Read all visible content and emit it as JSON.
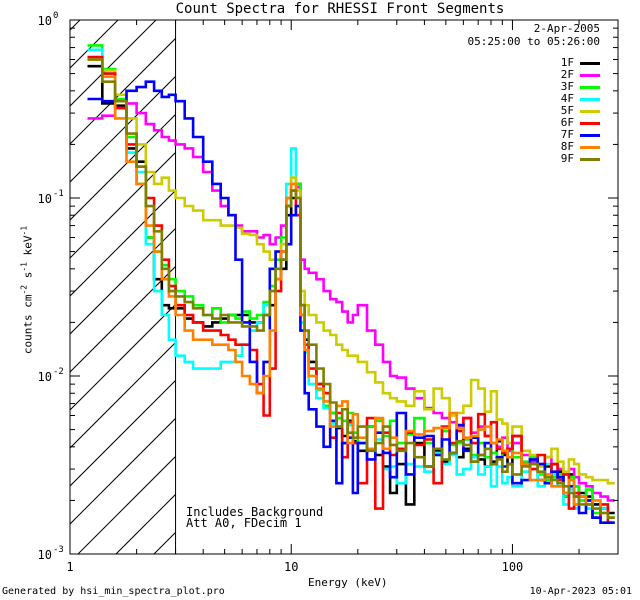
{
  "chart_data": {
    "type": "line",
    "title": "Count Spectra for RHESSI Front Segments",
    "xlabel": "Energy (keV)",
    "ylabel": "counts cm-2 s-1 keV-1",
    "xscale": "log",
    "yscale": "log",
    "xlim": [
      1,
      300
    ],
    "ylim": [
      0.001,
      1
    ],
    "x_ticks": [
      {
        "value": 1,
        "label": "1"
      },
      {
        "value": 10,
        "label": "10"
      },
      {
        "value": 100,
        "label": "100"
      }
    ],
    "y_ticks": [
      {
        "value": 1,
        "base": "10",
        "exp": "0"
      },
      {
        "value": 0.1,
        "base": "10",
        "exp": "-1"
      },
      {
        "value": 0.01,
        "base": "10",
        "exp": "-2"
      },
      {
        "value": 0.001,
        "base": "10",
        "exp": "-3"
      }
    ],
    "hatched_region_kev": [
      1,
      3
    ],
    "energy_edges": [
      1.2,
      1.4,
      1.6,
      1.8,
      2,
      2.2,
      2.4,
      2.6,
      2.8,
      3,
      3.3,
      3.6,
      4,
      4.4,
      4.8,
      5.2,
      5.6,
      6,
      6.5,
      7,
      7.5,
      8,
      8.5,
      9,
      9.5,
      10,
      10.5,
      11,
      11.5,
      12,
      13,
      14,
      15,
      16,
      17,
      18,
      19,
      20,
      22,
      24,
      26,
      28,
      30,
      33,
      36,
      40,
      44,
      48,
      52,
      56,
      60,
      65,
      70,
      75,
      80,
      85,
      90,
      95,
      100,
      110,
      120,
      130,
      140,
      150,
      160,
      170,
      180,
      190,
      200,
      215,
      230,
      250,
      270,
      290
    ],
    "series": [
      {
        "name": "1F",
        "color": "#000000",
        "values": [
          0.55,
          0.34,
          0.33,
          0.19,
          0.16,
          0.06,
          0.035,
          0.025,
          0.024,
          0.024,
          0.021,
          0.02,
          0.019,
          0.02,
          0.021,
          0.022,
          0.022,
          0.022,
          0.02,
          0.02,
          0.022,
          0.025,
          0.035,
          0.04,
          0.08,
          0.1,
          0.12,
          0.025,
          0.016,
          0.012,
          0.009,
          0.008,
          0.0062,
          0.0051,
          0.0046,
          0.0056,
          0.0043,
          0.0038,
          0.0052,
          0.0036,
          0.0031,
          0.0022,
          0.0032,
          0.0019,
          0.0042,
          0.0031,
          0.0038,
          0.0033,
          0.0037,
          0.0035,
          0.0039,
          0.0033,
          0.0034,
          0.0031,
          0.0033,
          0.0043,
          0.0036,
          0.0032,
          0.0046,
          0.0032,
          0.0033,
          0.0026,
          0.0031,
          0.0027,
          0.0029,
          0.0021,
          0.0028,
          0.0024,
          0.0022,
          0.0021,
          0.0019,
          0.0018,
          0.0017
        ]
      },
      {
        "name": "2F",
        "color": "#ff00ff",
        "values": [
          0.28,
          0.29,
          0.32,
          0.34,
          0.3,
          0.26,
          0.24,
          0.22,
          0.21,
          0.2,
          0.19,
          0.17,
          0.14,
          0.11,
          0.09,
          0.08,
          0.07,
          0.065,
          0.065,
          0.06,
          0.062,
          0.055,
          0.06,
          0.07,
          0.1,
          0.12,
          0.115,
          0.045,
          0.04,
          0.038,
          0.035,
          0.03,
          0.027,
          0.026,
          0.023,
          0.02,
          0.022,
          0.025,
          0.018,
          0.015,
          0.012,
          0.01,
          0.0098,
          0.0085,
          0.0075,
          0.0066,
          0.0062,
          0.0058,
          0.0055,
          0.0052,
          0.0058,
          0.0048,
          0.0052,
          0.0046,
          0.0042,
          0.004,
          0.0045,
          0.0038,
          0.0042,
          0.0036,
          0.0033,
          0.0032,
          0.0035,
          0.0032,
          0.003,
          0.0028,
          0.003,
          0.0027,
          0.0025,
          0.0024,
          0.0022,
          0.0021,
          0.002
        ]
      },
      {
        "name": "3F",
        "color": "#00ff00",
        "values": [
          0.72,
          0.53,
          0.36,
          0.22,
          0.12,
          0.06,
          0.05,
          0.042,
          0.035,
          0.03,
          0.028,
          0.025,
          0.022,
          0.024,
          0.02,
          0.022,
          0.021,
          0.023,
          0.021,
          0.022,
          0.026,
          0.032,
          0.045,
          0.06,
          0.1,
          0.13,
          0.12,
          0.025,
          0.015,
          0.01,
          0.0084,
          0.0068,
          0.0062,
          0.0058,
          0.0056,
          0.0062,
          0.0048,
          0.0042,
          0.0052,
          0.0056,
          0.0046,
          0.0056,
          0.0042,
          0.0047,
          0.0058,
          0.0042,
          0.0036,
          0.0049,
          0.0041,
          0.0042,
          0.0044,
          0.0036,
          0.0042,
          0.0035,
          0.0037,
          0.0035,
          0.0038,
          0.0039,
          0.0035,
          0.0033,
          0.0035,
          0.0028,
          0.0026,
          0.0027,
          0.0028,
          0.0021,
          0.0027,
          0.0024,
          0.002,
          0.0023,
          0.0017,
          0.0018,
          0.0016
        ]
      },
      {
        "name": "4F",
        "color": "#00ffff",
        "values": [
          0.68,
          0.5,
          0.35,
          0.18,
          0.14,
          0.055,
          0.03,
          0.022,
          0.016,
          0.013,
          0.012,
          0.011,
          0.011,
          0.011,
          0.012,
          0.012,
          0.013,
          0.015,
          0.018,
          0.02,
          0.025,
          0.03,
          0.04,
          0.05,
          0.12,
          0.19,
          0.1,
          0.02,
          0.0135,
          0.009,
          0.0075,
          0.0066,
          0.0054,
          0.0052,
          0.0042,
          0.0053,
          0.0042,
          0.0042,
          0.0038,
          0.0044,
          0.003,
          0.0031,
          0.0025,
          0.0032,
          0.0031,
          0.0029,
          0.0037,
          0.0032,
          0.0036,
          0.0028,
          0.003,
          0.0035,
          0.0028,
          0.0031,
          0.0024,
          0.0031,
          0.0025,
          0.0027,
          0.0024,
          0.0029,
          0.0032,
          0.0024,
          0.0032,
          0.0028,
          0.0024,
          0.0019,
          0.0023,
          0.0018,
          0.0021,
          0.0018,
          0.0016,
          0.0018,
          0.0015
        ]
      },
      {
        "name": "5F",
        "color": "#cccc00",
        "values": [
          0.6,
          0.52,
          0.38,
          0.28,
          0.2,
          0.14,
          0.12,
          0.13,
          0.11,
          0.1,
          0.09,
          0.085,
          0.075,
          0.075,
          0.07,
          0.07,
          0.068,
          0.063,
          0.062,
          0.055,
          0.05,
          0.045,
          0.05,
          0.055,
          0.1,
          0.13,
          0.11,
          0.03,
          0.025,
          0.022,
          0.02,
          0.018,
          0.017,
          0.015,
          0.014,
          0.013,
          0.013,
          0.012,
          0.0105,
          0.0092,
          0.008,
          0.0075,
          0.0072,
          0.0068,
          0.0082,
          0.0065,
          0.0085,
          0.0075,
          0.006,
          0.0062,
          0.0068,
          0.0095,
          0.0085,
          0.0063,
          0.0082,
          0.0057,
          0.0054,
          0.0042,
          0.0052,
          0.0038,
          0.0036,
          0.0031,
          0.0035,
          0.0039,
          0.0033,
          0.0029,
          0.0034,
          0.0032,
          0.0028,
          0.0027,
          0.0026,
          0.0026,
          0.0025
        ]
      },
      {
        "name": "6F",
        "color": "#ff0000",
        "values": [
          0.62,
          0.5,
          0.32,
          0.2,
          0.15,
          0.1,
          0.07,
          0.045,
          0.032,
          0.025,
          0.022,
          0.02,
          0.018,
          0.018,
          0.017,
          0.016,
          0.015,
          0.015,
          0.014,
          0.009,
          0.006,
          0.011,
          0.03,
          0.05,
          0.09,
          0.11,
          0.08,
          0.022,
          0.015,
          0.011,
          0.009,
          0.008,
          0.0045,
          0.0062,
          0.0035,
          0.0055,
          0.0042,
          0.0025,
          0.0058,
          0.0018,
          0.0048,
          0.0036,
          0.0039,
          0.0048,
          0.0041,
          0.0044,
          0.0025,
          0.0052,
          0.0042,
          0.0049,
          0.0058,
          0.0042,
          0.0061,
          0.0046,
          0.0055,
          0.0039,
          0.0037,
          0.0039,
          0.0046,
          0.0032,
          0.003,
          0.0036,
          0.0025,
          0.0032,
          0.0026,
          0.0028,
          0.0018,
          0.0022,
          0.0021,
          0.002,
          0.0016,
          0.0019,
          0.0015
        ]
      },
      {
        "name": "7F",
        "color": "#0000ff",
        "values": [
          0.36,
          0.35,
          0.35,
          0.4,
          0.42,
          0.45,
          0.4,
          0.37,
          0.38,
          0.35,
          0.28,
          0.22,
          0.16,
          0.12,
          0.1,
          0.08,
          0.045,
          0.02,
          0.012,
          0.008,
          0.012,
          0.04,
          0.05,
          0.045,
          0.055,
          0.08,
          0.09,
          0.018,
          0.008,
          0.0065,
          0.0052,
          0.004,
          0.0056,
          0.0025,
          0.0042,
          0.0045,
          0.0022,
          0.0042,
          0.0034,
          0.0048,
          0.0037,
          0.0027,
          0.0062,
          0.0028,
          0.0045,
          0.0046,
          0.0036,
          0.0044,
          0.0037,
          0.0053,
          0.0038,
          0.0045,
          0.0036,
          0.0042,
          0.0032,
          0.0035,
          0.0031,
          0.0032,
          0.0025,
          0.0026,
          0.0034,
          0.0032,
          0.0025,
          0.0029,
          0.0027,
          0.0022,
          0.0024,
          0.0021,
          0.0017,
          0.002,
          0.0016,
          0.0015,
          0.0015
        ]
      },
      {
        "name": "8F",
        "color": "#ff8000",
        "values": [
          0.6,
          0.48,
          0.28,
          0.16,
          0.12,
          0.07,
          0.05,
          0.035,
          0.028,
          0.022,
          0.018,
          0.016,
          0.016,
          0.015,
          0.015,
          0.014,
          0.012,
          0.01,
          0.009,
          0.008,
          0.01,
          0.018,
          0.035,
          0.05,
          0.1,
          0.12,
          0.1,
          0.022,
          0.014,
          0.01,
          0.0085,
          0.0072,
          0.0052,
          0.0068,
          0.0072,
          0.0042,
          0.0061,
          0.0045,
          0.0039,
          0.0058,
          0.0039,
          0.0045,
          0.0038,
          0.0049,
          0.0047,
          0.0049,
          0.0051,
          0.0051,
          0.0062,
          0.0051,
          0.0045,
          0.0046,
          0.005,
          0.0052,
          0.0042,
          0.0044,
          0.0038,
          0.0035,
          0.0037,
          0.0032,
          0.0026,
          0.0026,
          0.0028,
          0.0024,
          0.0024,
          0.0022,
          0.0026,
          0.0019,
          0.0021,
          0.0019,
          0.002,
          0.0017,
          0.0016
        ]
      },
      {
        "name": "9F",
        "color": "#808000",
        "values": [
          0.6,
          0.45,
          0.35,
          0.23,
          0.15,
          0.09,
          0.065,
          0.04,
          0.03,
          0.028,
          0.026,
          0.024,
          0.022,
          0.021,
          0.022,
          0.02,
          0.02,
          0.019,
          0.019,
          0.018,
          0.022,
          0.03,
          0.04,
          0.045,
          0.09,
          0.11,
          0.1,
          0.025,
          0.018,
          0.015,
          0.011,
          0.009,
          0.0071,
          0.0052,
          0.0065,
          0.0048,
          0.0045,
          0.0052,
          0.0038,
          0.0042,
          0.0052,
          0.0041,
          0.0038,
          0.0042,
          0.0035,
          0.0031,
          0.0039,
          0.0034,
          0.0037,
          0.0043,
          0.0041,
          0.0033,
          0.0036,
          0.0039,
          0.0032,
          0.0034,
          0.0029,
          0.0032,
          0.0028,
          0.0031,
          0.0032,
          0.0029,
          0.0027,
          0.0026,
          0.0025,
          0.0024,
          0.0022,
          0.0021,
          0.0019,
          0.0019,
          0.0018,
          0.0017,
          0.0016
        ]
      }
    ]
  },
  "header": {
    "date": "2-Apr-2005",
    "time_range": "05:25:00 to 05:26:00"
  },
  "annotations": {
    "background_note": "Includes Background",
    "attenuator_note": "Att A0, FDecim 1"
  },
  "footer": {
    "generated_by": "Generated by hsi_min_spectra_plot.pro",
    "timestamp": "10-Apr-2023 05:01"
  }
}
